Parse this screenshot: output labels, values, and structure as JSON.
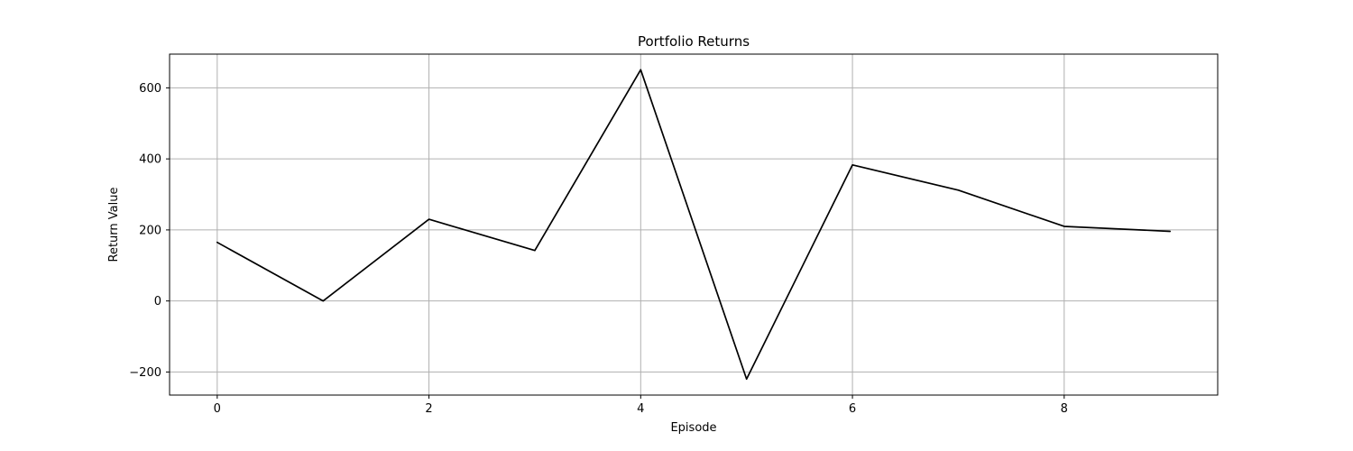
{
  "chart_data": {
    "type": "line",
    "title": "Portfolio Returns",
    "xlabel": "Episode",
    "ylabel": "Return Value",
    "x": [
      0,
      1,
      2,
      3,
      4,
      5,
      6,
      7,
      8,
      9
    ],
    "series": [
      {
        "values": [
          165,
          0,
          230,
          142,
          651,
          -220,
          383,
          312,
          210,
          196
        ],
        "color": "#000000"
      }
    ],
    "xlim": [
      -0.45,
      9.45
    ],
    "ylim": [
      -265,
      695
    ],
    "xticks": [
      0,
      2,
      4,
      6,
      8
    ],
    "yticks": [
      -200,
      0,
      200,
      400,
      600
    ],
    "xtick_labels": [
      "0",
      "2",
      "4",
      "6",
      "8"
    ],
    "ytick_labels": [
      "−200",
      "0",
      "200",
      "400",
      "600"
    ],
    "grid": true,
    "legend": false
  }
}
